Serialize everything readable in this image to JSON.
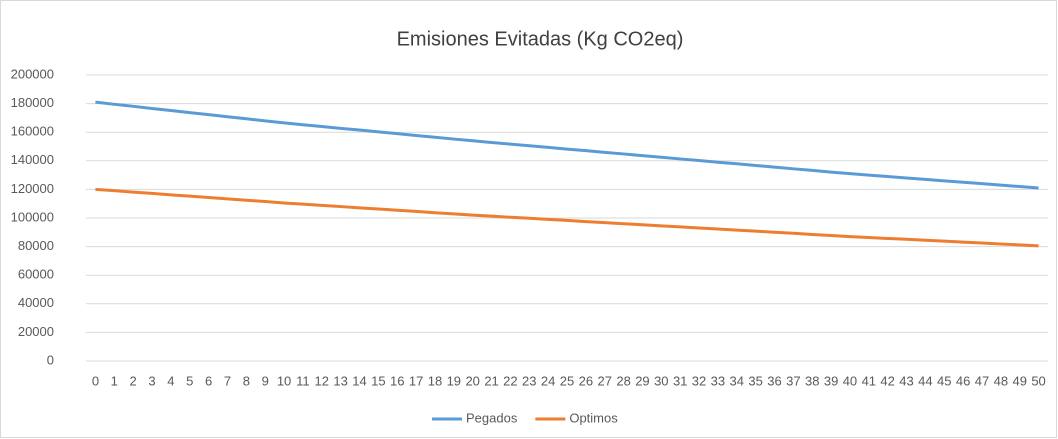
{
  "chart_data": {
    "type": "line",
    "title": "Emisiones Evitadas (Kg CO2eq)",
    "categories": [
      "0",
      "1",
      "2",
      "3",
      "4",
      "5",
      "6",
      "7",
      "8",
      "9",
      "10",
      "11",
      "12",
      "13",
      "14",
      "15",
      "16",
      "17",
      "18",
      "19",
      "20",
      "21",
      "22",
      "23",
      "24",
      "25",
      "26",
      "27",
      "28",
      "29",
      "30",
      "31",
      "32",
      "33",
      "34",
      "35",
      "36",
      "37",
      "38",
      "39",
      "40",
      "41",
      "42",
      "43",
      "44",
      "45",
      "46",
      "47",
      "48",
      "49",
      "50"
    ],
    "series": [
      {
        "name": "Pegados",
        "color": "#5b9bd5",
        "values": [
          181000,
          179500,
          178100,
          176600,
          175200,
          173700,
          172300,
          170800,
          169400,
          167900,
          166500,
          165200,
          164000,
          162700,
          161500,
          160200,
          159000,
          157700,
          156500,
          155200,
          154000,
          152800,
          151700,
          150500,
          149400,
          148200,
          147100,
          145900,
          144800,
          143600,
          142500,
          141300,
          140200,
          139000,
          137900,
          136700,
          135600,
          134400,
          133300,
          132100,
          131000,
          130000,
          129000,
          128000,
          127000,
          126000,
          125000,
          124000,
          123000,
          122000,
          121000
        ]
      },
      {
        "name": "Optimos",
        "color": "#ed7d31",
        "values": [
          120000,
          119100,
          118100,
          117200,
          116200,
          115300,
          114300,
          113400,
          112400,
          111500,
          110500,
          109700,
          108800,
          108000,
          107100,
          106300,
          105400,
          104600,
          103700,
          102900,
          102000,
          101300,
          100500,
          99800,
          99000,
          98300,
          97500,
          96800,
          96000,
          95300,
          94500,
          93800,
          93000,
          92300,
          91500,
          90800,
          90000,
          89300,
          88500,
          87800,
          87000,
          86400,
          85700,
          85100,
          84400,
          83800,
          83100,
          82500,
          81800,
          81200,
          80500
        ]
      }
    ],
    "ylim": [
      0,
      200000
    ],
    "yticks": [
      0,
      20000,
      40000,
      60000,
      80000,
      100000,
      120000,
      140000,
      160000,
      180000,
      200000
    ],
    "grid": true,
    "legend": "bottom"
  }
}
